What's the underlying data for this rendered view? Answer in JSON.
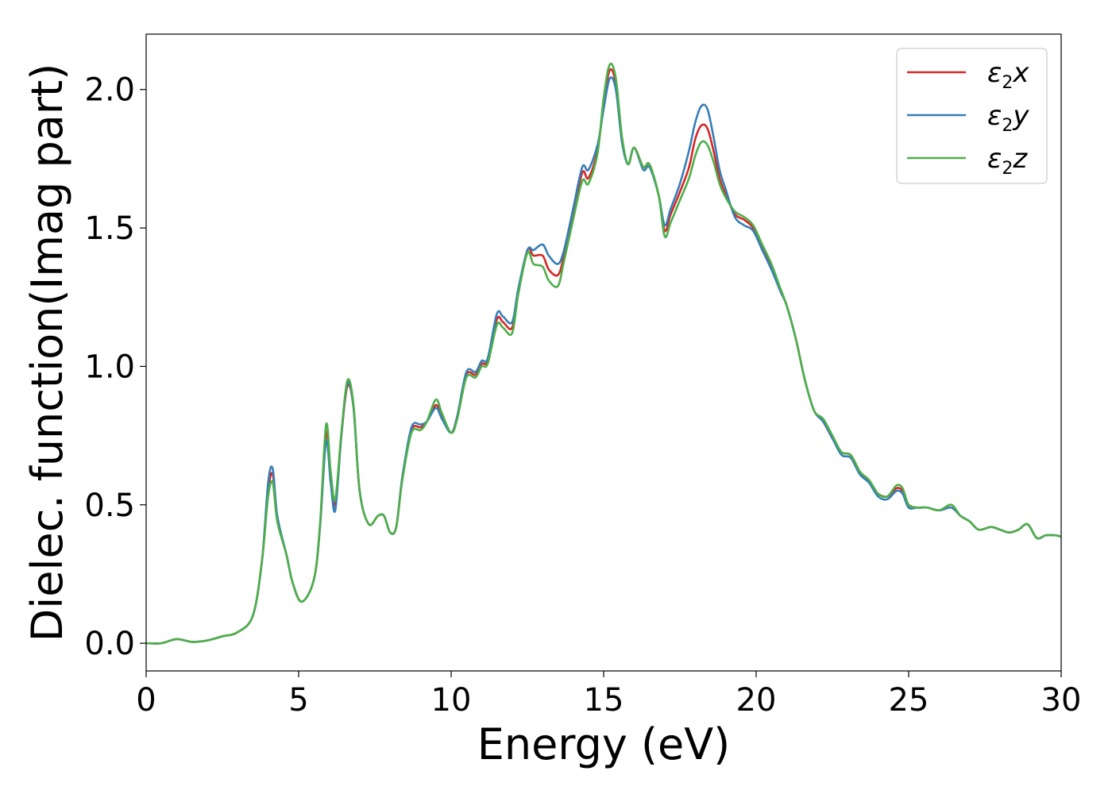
{
  "chart_data": {
    "type": "line",
    "title": "",
    "xlabel": "Energy (eV)",
    "ylabel": "Dielec. function(Imag part)",
    "xlim": [
      0,
      30
    ],
    "ylim": [
      -0.1,
      2.2
    ],
    "xticks": [
      0,
      5,
      10,
      15,
      20,
      25,
      30
    ],
    "xtick_labels": [
      "0",
      "5",
      "10",
      "15",
      "20",
      "25",
      "30"
    ],
    "yticks": [
      0.0,
      0.5,
      1.0,
      1.5,
      2.0
    ],
    "ytick_labels": [
      "0.0",
      "0.5",
      "1.0",
      "1.5",
      "2.0"
    ],
    "grid": false,
    "legend_position": "top-right",
    "x": [
      0,
      0.5,
      1.0,
      1.5,
      2.0,
      2.5,
      3.0,
      3.5,
      3.8,
      4.0,
      4.15,
      4.3,
      4.6,
      4.8,
      5.1,
      5.5,
      5.7,
      5.9,
      6.05,
      6.2,
      6.4,
      6.6,
      6.8,
      7.0,
      7.3,
      7.6,
      7.8,
      8.0,
      8.2,
      8.4,
      8.7,
      9.0,
      9.2,
      9.5,
      9.7,
      10.0,
      10.2,
      10.5,
      10.8,
      11.0,
      11.2,
      11.5,
      11.7,
      12.0,
      12.2,
      12.5,
      12.7,
      13.0,
      13.2,
      13.5,
      13.7,
      14.0,
      14.3,
      14.5,
      14.8,
      15.0,
      15.2,
      15.4,
      15.6,
      15.8,
      16.0,
      16.3,
      16.5,
      16.8,
      17.0,
      17.2,
      17.5,
      17.8,
      18.0,
      18.2,
      18.4,
      18.6,
      18.8,
      19.0,
      19.3,
      19.6,
      19.9,
      20.2,
      20.5,
      20.8,
      21.0,
      21.3,
      21.6,
      21.9,
      22.2,
      22.5,
      22.8,
      23.1,
      23.4,
      23.7,
      24.0,
      24.3,
      24.6,
      24.8,
      25.0,
      25.3,
      25.6,
      26.0,
      26.4,
      26.7,
      27.0,
      27.3,
      27.7,
      28.0,
      28.3,
      28.6,
      28.9,
      29.2,
      29.5,
      29.8,
      30.0
    ],
    "series": [
      {
        "name": "ε2x",
        "color": "#d62728",
        "values": [
          0,
          0.0,
          0.015,
          0.005,
          0.01,
          0.025,
          0.04,
          0.1,
          0.3,
          0.55,
          0.61,
          0.45,
          0.32,
          0.22,
          0.15,
          0.23,
          0.42,
          0.76,
          0.6,
          0.5,
          0.75,
          0.93,
          0.85,
          0.55,
          0.43,
          0.46,
          0.46,
          0.4,
          0.42,
          0.6,
          0.77,
          0.78,
          0.8,
          0.86,
          0.82,
          0.76,
          0.82,
          0.97,
          0.97,
          1.01,
          1.02,
          1.17,
          1.16,
          1.14,
          1.27,
          1.42,
          1.4,
          1.4,
          1.35,
          1.33,
          1.4,
          1.55,
          1.7,
          1.68,
          1.78,
          1.95,
          2.07,
          2.02,
          1.82,
          1.73,
          1.79,
          1.72,
          1.73,
          1.62,
          1.49,
          1.55,
          1.63,
          1.72,
          1.82,
          1.87,
          1.86,
          1.78,
          1.68,
          1.62,
          1.55,
          1.53,
          1.5,
          1.43,
          1.36,
          1.27,
          1.22,
          1.1,
          0.95,
          0.84,
          0.8,
          0.74,
          0.69,
          0.68,
          0.62,
          0.58,
          0.54,
          0.53,
          0.56,
          0.55,
          0.5,
          0.49,
          0.49,
          0.48,
          0.49,
          0.46,
          0.44,
          0.41,
          0.42,
          0.41,
          0.4,
          0.41,
          0.43,
          0.38,
          0.39,
          0.39,
          0.385
        ]
      },
      {
        "name": "ε2y",
        "color": "#377eb8",
        "values": [
          0,
          0.0,
          0.015,
          0.005,
          0.01,
          0.025,
          0.04,
          0.1,
          0.3,
          0.58,
          0.63,
          0.46,
          0.32,
          0.22,
          0.15,
          0.23,
          0.42,
          0.73,
          0.58,
          0.48,
          0.75,
          0.94,
          0.85,
          0.55,
          0.43,
          0.46,
          0.46,
          0.4,
          0.42,
          0.6,
          0.78,
          0.79,
          0.8,
          0.85,
          0.81,
          0.76,
          0.82,
          0.98,
          0.98,
          1.02,
          1.03,
          1.19,
          1.18,
          1.16,
          1.28,
          1.42,
          1.42,
          1.44,
          1.4,
          1.37,
          1.42,
          1.57,
          1.72,
          1.71,
          1.8,
          1.93,
          2.04,
          2.0,
          1.81,
          1.73,
          1.79,
          1.71,
          1.72,
          1.62,
          1.51,
          1.57,
          1.66,
          1.78,
          1.88,
          1.94,
          1.93,
          1.83,
          1.71,
          1.64,
          1.54,
          1.51,
          1.49,
          1.42,
          1.35,
          1.27,
          1.22,
          1.1,
          0.95,
          0.84,
          0.8,
          0.74,
          0.68,
          0.67,
          0.61,
          0.58,
          0.53,
          0.52,
          0.55,
          0.54,
          0.49,
          0.49,
          0.49,
          0.48,
          0.49,
          0.46,
          0.44,
          0.41,
          0.42,
          0.41,
          0.4,
          0.41,
          0.43,
          0.38,
          0.39,
          0.39,
          0.385
        ]
      },
      {
        "name": "ε2z",
        "color": "#4daf4a",
        "values": [
          0,
          0.0,
          0.015,
          0.005,
          0.01,
          0.025,
          0.04,
          0.1,
          0.3,
          0.53,
          0.58,
          0.44,
          0.32,
          0.22,
          0.15,
          0.23,
          0.43,
          0.79,
          0.62,
          0.52,
          0.76,
          0.95,
          0.86,
          0.55,
          0.43,
          0.46,
          0.46,
          0.4,
          0.42,
          0.59,
          0.76,
          0.77,
          0.8,
          0.88,
          0.83,
          0.76,
          0.81,
          0.96,
          0.96,
          1.0,
          1.01,
          1.15,
          1.14,
          1.12,
          1.26,
          1.41,
          1.37,
          1.36,
          1.31,
          1.29,
          1.38,
          1.53,
          1.67,
          1.66,
          1.77,
          1.97,
          2.09,
          2.04,
          1.83,
          1.73,
          1.79,
          1.72,
          1.73,
          1.62,
          1.47,
          1.52,
          1.6,
          1.68,
          1.76,
          1.81,
          1.8,
          1.74,
          1.66,
          1.61,
          1.56,
          1.54,
          1.51,
          1.44,
          1.37,
          1.28,
          1.22,
          1.1,
          0.95,
          0.84,
          0.81,
          0.75,
          0.69,
          0.68,
          0.62,
          0.59,
          0.54,
          0.53,
          0.57,
          0.56,
          0.5,
          0.49,
          0.49,
          0.48,
          0.5,
          0.46,
          0.44,
          0.41,
          0.42,
          0.41,
          0.4,
          0.41,
          0.43,
          0.38,
          0.39,
          0.39,
          0.385
        ]
      }
    ]
  }
}
